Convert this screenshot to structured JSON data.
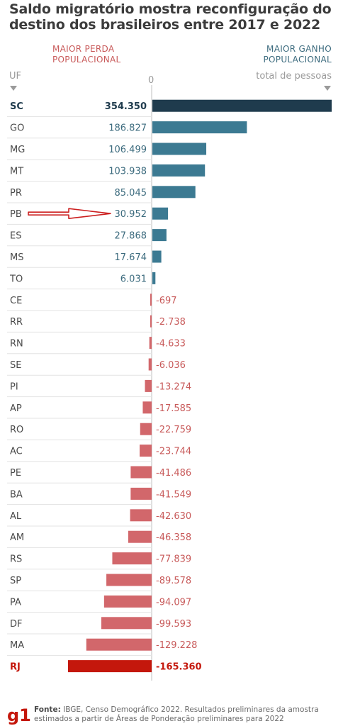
{
  "title_lines": [
    "Saldo migratório mostra reconfiguração do",
    "destino dos brasileiros entre 2017 e 2022"
  ],
  "header": {
    "loss_label_line1": "MAIOR PERDA",
    "loss_label_line2": "POPULACIONAL",
    "gain_label_line1": "MAIOR GANHO",
    "gain_label_line2": "POPULACIONAL",
    "uf_label": "UF",
    "zero_label": "0",
    "total_label": "total de pessoas"
  },
  "footer": {
    "logo": "g1",
    "source_prefix": "Fonte:",
    "source_text": "IBGE, Censo Demográfico 2022. Resultados preliminares da amostra estimados a partir de Áreas de Ponderação preliminares para 2022"
  },
  "colors": {
    "positive": "#3c7a92",
    "positive_top": "#1f3b4d",
    "negative": "#d2676b",
    "negative_bottom": "#c4170c",
    "positive_text": "#3c6b7e",
    "negative_text": "#c85a5a"
  },
  "chart_data": {
    "type": "bar",
    "orientation": "horizontal",
    "xlim": [
      -170000,
      360000
    ],
    "categories": [
      "SC",
      "GO",
      "MG",
      "MT",
      "PR",
      "PB",
      "ES",
      "MS",
      "TO",
      "CE",
      "RR",
      "RN",
      "SE",
      "PI",
      "AP",
      "RO",
      "AC",
      "PE",
      "BA",
      "AL",
      "AM",
      "RS",
      "SP",
      "PA",
      "DF",
      "MA",
      "RJ"
    ],
    "values": [
      354350,
      186827,
      106499,
      103938,
      85045,
      30952,
      27868,
      17674,
      6031,
      -697,
      -2738,
      -4633,
      -6036,
      -13274,
      -17585,
      -22759,
      -23744,
      -41486,
      -41549,
      -42630,
      -46358,
      -77839,
      -89578,
      -94097,
      -99593,
      -129228,
      -165360
    ],
    "value_labels": [
      "354.350",
      "186.827",
      "106.499",
      "103.938",
      "85.045",
      "30.952",
      "27.868",
      "17.674",
      "6.031",
      "-697",
      "-2.738",
      "-4.633",
      "-6.036",
      "-13.274",
      "-17.585",
      "-22.759",
      "-23.744",
      "-41.486",
      "-41.549",
      "-42.630",
      "-46.358",
      "-77.839",
      "-89.578",
      "-94.097",
      "-99.593",
      "-129.228",
      "-165.360"
    ],
    "highlighted": [
      "SC",
      "RJ"
    ],
    "annotation": {
      "type": "arrow",
      "target": "PB",
      "color": "#cc1f1f"
    }
  }
}
